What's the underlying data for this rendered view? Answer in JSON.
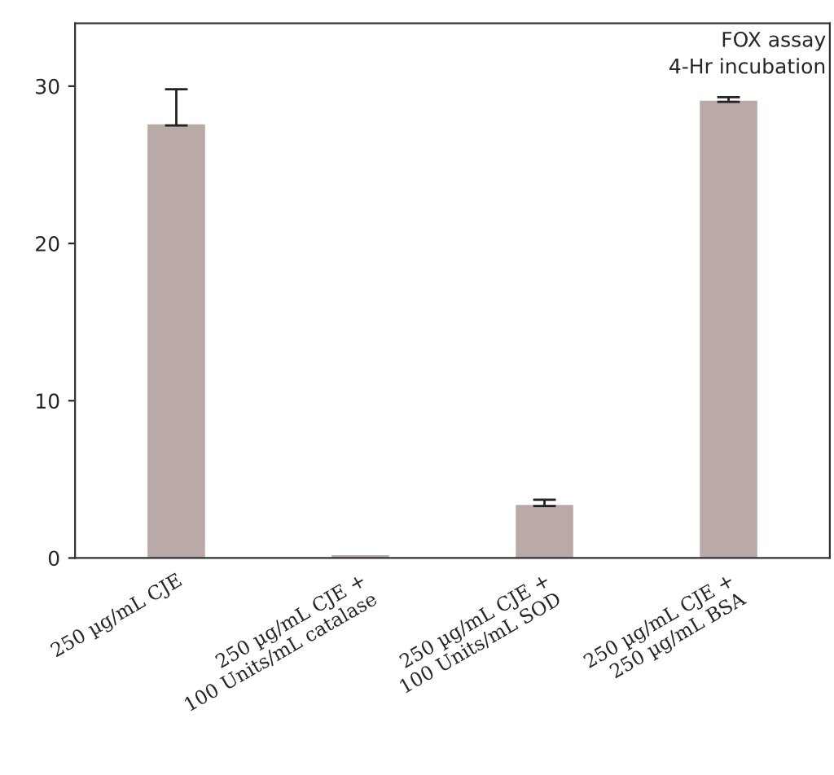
{
  "chart_data": {
    "type": "bar",
    "categories": [
      "250 µg/mL CJE",
      "250 µg/mL CJE +\n100 Units/mL catalase",
      "250 µg/mL CJE +\n100 Units/mL SOD",
      "250 µg/mL CJE +\n250 µg/mL BSA"
    ],
    "values": [
      27.5,
      0.1,
      3.3,
      29.0
    ],
    "errors": [
      [
        27.5,
        29.8
      ],
      null,
      [
        3.3,
        3.7
      ],
      [
        29.0,
        29.3
      ]
    ],
    "color": "#b9aaa8",
    "ylim": [
      0,
      34
    ],
    "yticks": [
      0,
      10,
      20,
      30
    ],
    "grid": false,
    "annotations": [
      "FOX assay",
      "4-Hr incubation"
    ]
  }
}
